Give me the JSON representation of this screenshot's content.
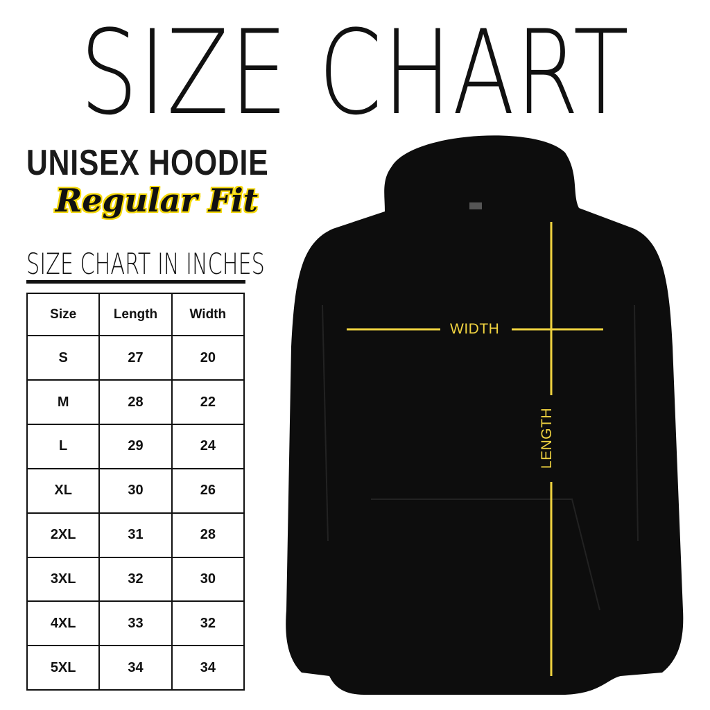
{
  "title": "SIZE CHART",
  "product": "UNISEX HOODIE",
  "fit": "Regular Fit",
  "units_heading": "SIZE CHART IN INCHES",
  "table": {
    "headers": [
      "Size",
      "Length",
      "Width"
    ],
    "rows": [
      [
        "S",
        "27",
        "20"
      ],
      [
        "M",
        "28",
        "22"
      ],
      [
        "L",
        "29",
        "24"
      ],
      [
        "XL",
        "30",
        "26"
      ],
      [
        "2XL",
        "31",
        "28"
      ],
      [
        "3XL",
        "32",
        "30"
      ],
      [
        "4XL",
        "33",
        "32"
      ],
      [
        "5XL",
        "34",
        "34"
      ]
    ]
  },
  "diagram": {
    "width_label": "WIDTH",
    "length_label": "LENGTH",
    "garment_color": "#0d0d0d",
    "measure_line_color": "#f0d340"
  }
}
